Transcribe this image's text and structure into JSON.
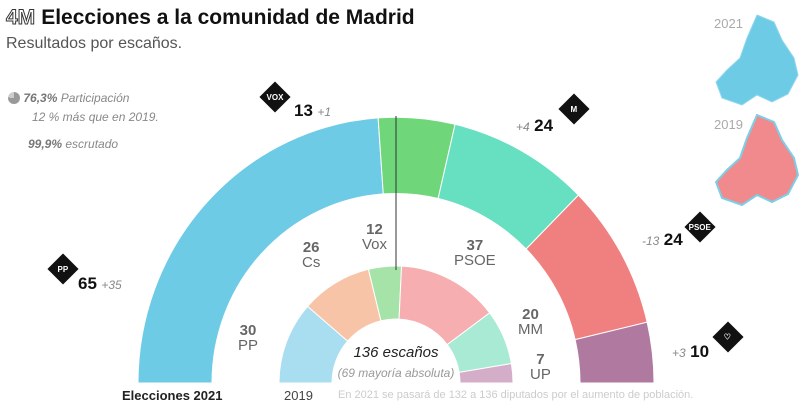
{
  "header": {
    "tag": "4M",
    "title": "Elecciones a la comunidad de Madrid",
    "subtitle": "Resultados por escaños."
  },
  "info": {
    "participation": "76,3%",
    "participation_label": "Participación",
    "participation_note": "12 % más que en 2019.",
    "counted": "99,9%",
    "counted_label": "escrutado"
  },
  "maps": {
    "label_2021": "2021",
    "label_2019": "2019"
  },
  "chart_data": {
    "type": "pie",
    "title": "Elecciones a la comunidad de Madrid",
    "series": [
      {
        "name": "Elecciones 2021",
        "total": 136,
        "parties": [
          {
            "name": "PP",
            "seats": 65,
            "change": "+35",
            "color": "#6dcbe6"
          },
          {
            "name": "Vox",
            "seats": 13,
            "change": "+1",
            "color": "#6fd67a"
          },
          {
            "name": "MM",
            "seats": 24,
            "change": "+4",
            "color": "#66e0c0"
          },
          {
            "name": "PSOE",
            "seats": 24,
            "change": "-13",
            "color": "#f07f80"
          },
          {
            "name": "UP",
            "seats": 10,
            "change": "+3",
            "color": "#b07aa0"
          }
        ]
      },
      {
        "name": "2019",
        "total": 132,
        "parties": [
          {
            "name": "PP",
            "seats": 30,
            "color": "#a9def0"
          },
          {
            "name": "Cs",
            "seats": 26,
            "color": "#f8c4a8"
          },
          {
            "name": "Vox",
            "seats": 12,
            "color": "#a6e3a8"
          },
          {
            "name": "PSOE",
            "seats": 37,
            "color": "#f7aeb0"
          },
          {
            "name": "MM",
            "seats": 20,
            "color": "#a9ead5"
          },
          {
            "name": "UP",
            "seats": 7,
            "color": "#d4aec8"
          }
        ]
      }
    ],
    "center_title": "136 escaños",
    "center_note": "(69 mayoría absoluta)",
    "footnote": "En 2021 se pasará de 132 a 136 diputados por el aumento de población."
  }
}
